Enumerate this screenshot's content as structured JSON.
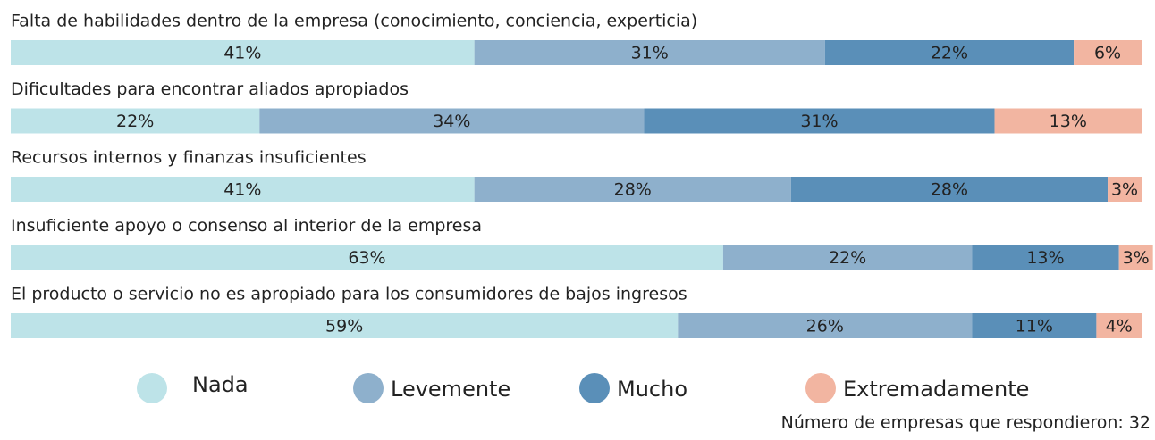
{
  "chart_data": {
    "type": "bar",
    "orientation": "horizontal",
    "stacked": true,
    "categories": [
      "Falta de habilidades dentro de la empresa (conocimiento, conciencia, experticia)",
      "Dificultades para encontrar aliados apropiados",
      "Recursos internos y finanzas insuficientes",
      "Insuficiente apoyo o consenso al interior de la empresa",
      "El producto o servicio no es apropiado para los consumidores de bajos ingresos"
    ],
    "xlim": [
      0,
      100
    ],
    "series": [
      {
        "name": "Nada",
        "color": "#bde3e8",
        "values": [
          41,
          22,
          41,
          63,
          59
        ],
        "value_labels": [
          "41%",
          "22%",
          "41%",
          "63%",
          "59%"
        ]
      },
      {
        "name": "Levemente",
        "color": "#8eb0cc",
        "values": [
          31,
          34,
          28,
          22,
          26
        ],
        "value_labels": [
          "31%",
          "34%",
          "28%",
          "22%",
          "26%"
        ]
      },
      {
        "name": "Mucho",
        "color": "#5a8fb8",
        "values": [
          22,
          31,
          28,
          13,
          11
        ],
        "value_labels": [
          "22%",
          "31%",
          "28%",
          "13%",
          "11%"
        ]
      },
      {
        "name": "Extremadamente",
        "color": "#f2b5a1",
        "values": [
          6,
          13,
          3,
          3,
          4
        ],
        "value_labels": [
          "6%",
          "13%",
          "3%",
          "3%",
          "4%"
        ]
      }
    ],
    "note": "Número de empresas que respondieron: 32"
  }
}
